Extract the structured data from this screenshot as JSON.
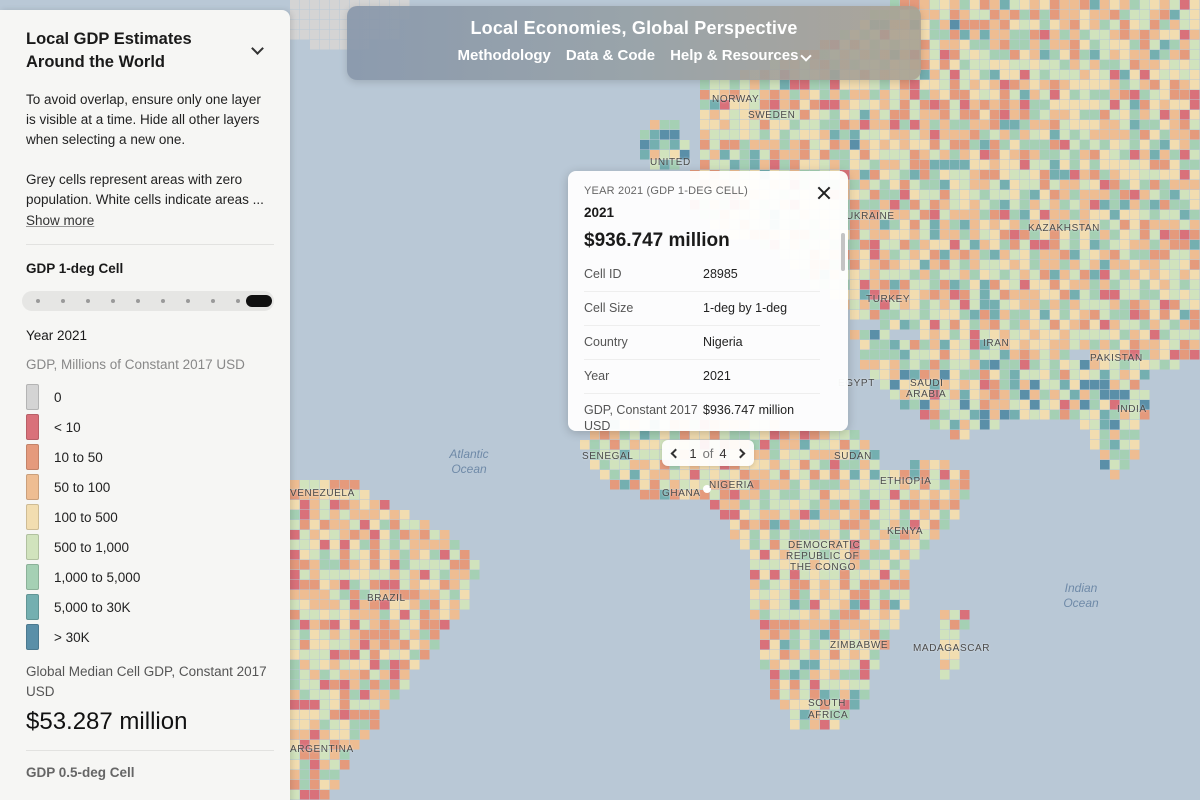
{
  "colors": {
    "zero": "#d4d4d4",
    "lt10": "#d9717a",
    "c10_50": "#e59a7c",
    "c50_100": "#eebd92",
    "c100_500": "#f2ddb0",
    "c500_1000": "#d1e3bd",
    "c1000_5000": "#a5d0b4",
    "c5000_30k": "#74afb0",
    "gt30k": "#5a8fa8",
    "ocean": "#b9c8d6"
  },
  "topnav": {
    "title": "Local Economies, Global Perspective",
    "links": [
      "Methodology",
      "Data & Code",
      "Help & Resources"
    ]
  },
  "sidebar": {
    "title": "Local GDP Estimates Around the World",
    "desc1": "To avoid overlap, ensure only one layer is visible at a time. Hide all other layers when selecting a new one.",
    "desc2": "Grey cells represent areas with zero population. White cells indicate areas ...",
    "show_more": "Show more",
    "layer_title": "GDP 1-deg Cell",
    "year": "Year 2021",
    "units": "GDP, Millions of Constant 2017 USD",
    "legend": [
      {
        "label": "0",
        "color": "#d4d4d4"
      },
      {
        "label": "< 10",
        "color": "#d9717a"
      },
      {
        "label": "10 to 50",
        "color": "#e59a7c"
      },
      {
        "label": "50 to 100",
        "color": "#eebd92"
      },
      {
        "label": "100 to 500",
        "color": "#f2ddb0"
      },
      {
        "label": "500 to 1,000",
        "color": "#d1e3bd"
      },
      {
        "label": "1,000 to 5,000",
        "color": "#a5d0b4"
      },
      {
        "label": "5,000 to 30K",
        "color": "#74afb0"
      },
      {
        "label": "> 30K",
        "color": "#5a8fa8"
      }
    ],
    "median_label": "Global Median Cell GDP, Constant 2017 USD",
    "median_value": "$53.287 million",
    "next_layer": "GDP 0.5-deg Cell"
  },
  "popup": {
    "header": "YEAR 2021 (GDP 1-DEG CELL)",
    "year": "2021",
    "value": "$936.747 million",
    "rows": [
      {
        "key": "Cell ID",
        "value": "28985"
      },
      {
        "key": "Cell Size",
        "value": "1-deg by 1-deg"
      },
      {
        "key": "Country",
        "value": "Nigeria"
      },
      {
        "key": "Year",
        "value": "2021"
      },
      {
        "key": "GDP, Constant 2017 USD",
        "value": "$936.747 million"
      }
    ]
  },
  "pager": {
    "current": "1",
    "of": "of",
    "total": "4"
  },
  "map": {
    "country_labels": [
      "NORWAY",
      "SWEDEN",
      "UNITED",
      "UKRAINE",
      "KAZAKHSTAN",
      "TURKEY",
      "IRAN",
      "PAKISTAN",
      "INDIA",
      "EGYPT",
      "SAUDI",
      "ARABIA",
      "SENEGAL",
      "NIGERIA",
      "GHANA",
      "SUDAN",
      "ETHIOPIA",
      "KENYA",
      "DEMOCRATIC",
      "REPUBLIC OF",
      "THE CONGO",
      "ZIMBABWE",
      "MADAGASCAR",
      "SOUTH",
      "AFRICA",
      "BRAZIL",
      "VENEZUELA",
      "ARGENTINA"
    ],
    "ocean_labels": [
      "Atlantic Ocean",
      "Indian Ocean"
    ]
  }
}
